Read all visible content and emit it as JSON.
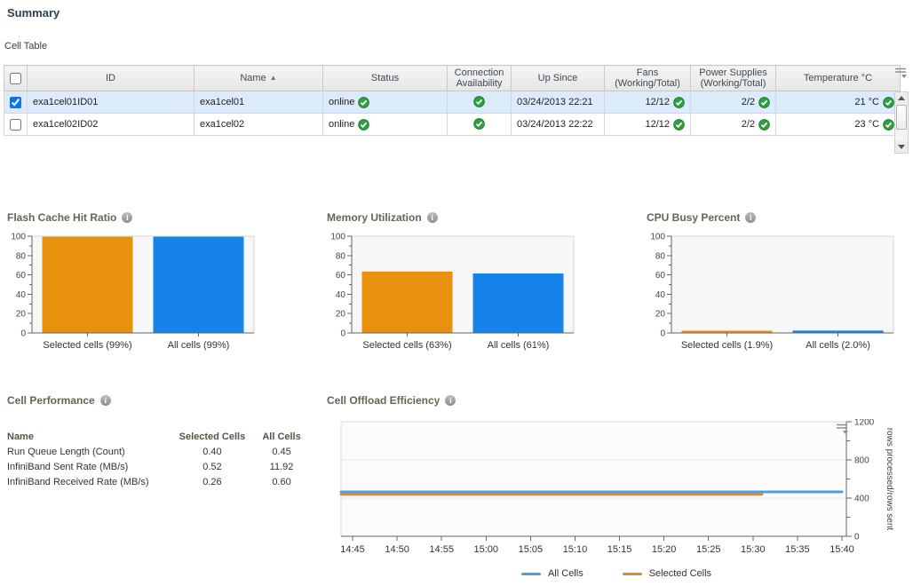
{
  "page": {
    "title": "Summary"
  },
  "cell_table": {
    "label": "Cell Table",
    "headers": {
      "id": "ID",
      "name": "Name",
      "status": "Status",
      "connection": "Connection Availability",
      "up_since": "Up Since",
      "fans": "Fans (Working/Total)",
      "power": "Power Supplies (Working/Total)",
      "temperature": "Temperature °C"
    },
    "rows": [
      {
        "checked": true,
        "id": "exa1cel01ID01",
        "name": "exa1cel01",
        "status": "online",
        "up_since": "03/24/2013 22:21",
        "fans": "12/12",
        "power": "2/2",
        "temperature": "21 °C"
      },
      {
        "checked": false,
        "id": "exa1cel02ID02",
        "name": "exa1cel02",
        "status": "online",
        "up_since": "03/24/2013 22:22",
        "fans": "12/12",
        "power": "2/2",
        "temperature": "23 °C"
      }
    ],
    "status_ok_color": "#2fa143"
  },
  "cell_performance": {
    "title": "Cell Performance",
    "headers": {
      "name": "Name",
      "selected": "Selected Cells",
      "all": "All Cells"
    },
    "rows": [
      {
        "name": "Run Queue Length (Count)",
        "selected": "0.40",
        "all": "0.45"
      },
      {
        "name": "InfiniBand Sent Rate (MB/s)",
        "selected": "0.52",
        "all": "11.92"
      },
      {
        "name": "InfiniBand Received Rate (MB/s)",
        "selected": "0.26",
        "all": "0.60"
      }
    ]
  },
  "chart_data": [
    {
      "type": "bar",
      "title": "Flash Cache Hit Ratio",
      "categories": [
        "Selected cells (99%)",
        "All cells (99%)"
      ],
      "values": [
        99,
        99
      ],
      "colors": [
        "#e8910f",
        "#1583ea"
      ],
      "ylim": [
        0,
        100
      ],
      "ytick_major": 20,
      "ytick_minor": 10,
      "grid": false,
      "xlabel": "",
      "ylabel": ""
    },
    {
      "type": "bar",
      "title": "Memory Utilization",
      "categories": [
        "Selected cells (63%)",
        "All cells (61%)"
      ],
      "values": [
        63,
        61
      ],
      "colors": [
        "#e8910f",
        "#1583ea"
      ],
      "ylim": [
        0,
        100
      ],
      "ytick_major": 20,
      "ytick_minor": 10,
      "grid": false,
      "xlabel": "",
      "ylabel": ""
    },
    {
      "type": "bar",
      "title": "CPU Busy Percent",
      "categories": [
        "Selected cells (1.9%)",
        "All cells (2.0%)"
      ],
      "values": [
        1.9,
        2.0
      ],
      "colors": [
        "#e8910f",
        "#1583ea"
      ],
      "ylim": [
        0,
        100
      ],
      "ytick_major": 20,
      "ytick_minor": 10,
      "grid": false,
      "xlabel": "",
      "ylabel": ""
    },
    {
      "type": "line",
      "title": "Cell Offload Efficiency",
      "ylabel": "rows processed/rows sent",
      "ylim": [
        0,
        1200
      ],
      "ytick_major": 400,
      "ytick_minor": 200,
      "grid": true,
      "legend_position": "bottom",
      "x_ticks": [
        "14:45",
        "14:50",
        "14:55",
        "15:00",
        "15:05",
        "15:10",
        "15:15",
        "15:20",
        "15:25",
        "15:30",
        "15:35",
        "15:40"
      ],
      "series": [
        {
          "name": "All Cells",
          "color": "#4e9ee0",
          "y": 465,
          "x_start": "14:43",
          "x_end": "15:40"
        },
        {
          "name": "Selected Cells",
          "color": "#e2862a",
          "y": 440,
          "x_start": "14:43",
          "x_end": "15:31"
        }
      ]
    }
  ]
}
